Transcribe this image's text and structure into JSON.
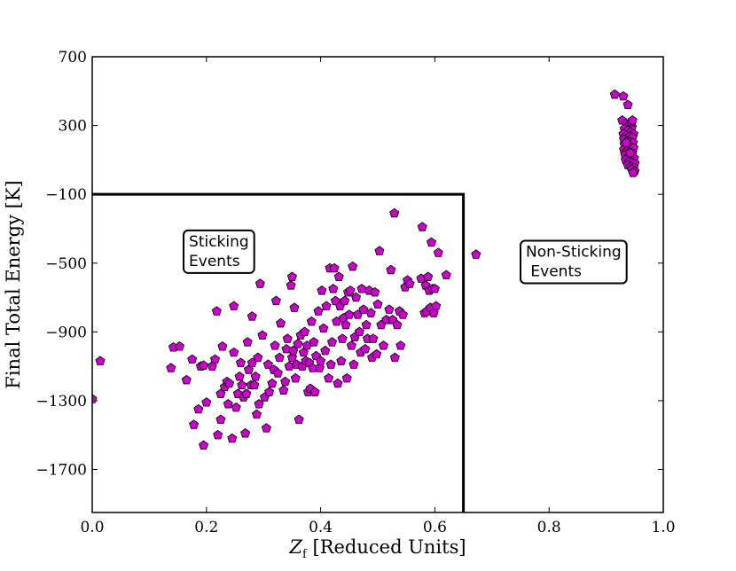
{
  "chart_data": {
    "type": "scatter",
    "title": "",
    "xlabel_main": "Z",
    "xlabel_sub": "f",
    "xlabel_rest": " [Reduced Units]",
    "ylabel": "Final Total Energy [K]",
    "xlim": [
      0.0,
      1.0
    ],
    "ylim": [
      -1950,
      700
    ],
    "xticks": [
      0.0,
      0.2,
      0.4,
      0.6,
      0.8,
      1.0
    ],
    "xtick_labels": [
      "0.0",
      "0.2",
      "0.4",
      "0.6",
      "0.8",
      "1.0"
    ],
    "yticks": [
      700,
      300,
      -100,
      -500,
      -900,
      -1300,
      -1700
    ],
    "ytick_labels": [
      "700",
      "300",
      "−100",
      "−500",
      "−900",
      "−1300",
      "−1700"
    ],
    "marker": "pentagon",
    "marker_color": "#cc00cc",
    "marker_edge": "#000000",
    "line_color": "#000000",
    "threshold": {
      "x": 0.65,
      "y": -100
    },
    "annotations": [
      {
        "lines": [
          "Sticking",
          "Events"
        ],
        "x": 0.16,
        "y": -310
      },
      {
        "lines": [
          "Non-Sticking",
          " Events"
        ],
        "x": 0.75,
        "y": -370
      }
    ],
    "points": [
      [
        0.0,
        -1290
      ],
      [
        0.014,
        -1070
      ],
      [
        0.138,
        -1110
      ],
      [
        0.142,
        -990
      ],
      [
        0.153,
        -985
      ],
      [
        0.165,
        -1180
      ],
      [
        0.175,
        -1060
      ],
      [
        0.178,
        -1440
      ],
      [
        0.186,
        -1350
      ],
      [
        0.19,
        -1100
      ],
      [
        0.195,
        -1095
      ],
      [
        0.195,
        -1560
      ],
      [
        0.2,
        -1310
      ],
      [
        0.21,
        -1100
      ],
      [
        0.215,
        -1060
      ],
      [
        0.218,
        -780
      ],
      [
        0.22,
        -1500
      ],
      [
        0.225,
        -1410
      ],
      [
        0.225,
        -1260
      ],
      [
        0.228,
        -985
      ],
      [
        0.232,
        -1220
      ],
      [
        0.236,
        -1190
      ],
      [
        0.238,
        -1320
      ],
      [
        0.24,
        -1200
      ],
      [
        0.245,
        -1520
      ],
      [
        0.248,
        -1020
      ],
      [
        0.248,
        -750
      ],
      [
        0.252,
        -1340
      ],
      [
        0.255,
        -1260
      ],
      [
        0.258,
        -1160
      ],
      [
        0.26,
        -1080
      ],
      [
        0.262,
        -1210
      ],
      [
        0.265,
        -1280
      ],
      [
        0.268,
        -1490
      ],
      [
        0.27,
        -1260
      ],
      [
        0.272,
        -960
      ],
      [
        0.274,
        -1120
      ],
      [
        0.278,
        -1210
      ],
      [
        0.28,
        -1080
      ],
      [
        0.28,
        -810
      ],
      [
        0.284,
        -1210
      ],
      [
        0.286,
        -1160
      ],
      [
        0.288,
        -1380
      ],
      [
        0.29,
        -1050
      ],
      [
        0.292,
        -1320
      ],
      [
        0.294,
        -620
      ],
      [
        0.298,
        -920
      ],
      [
        0.302,
        -1280
      ],
      [
        0.305,
        -1460
      ],
      [
        0.308,
        -1090
      ],
      [
        0.31,
        -1250
      ],
      [
        0.315,
        -1200
      ],
      [
        0.318,
        -1120
      ],
      [
        0.32,
        -980
      ],
      [
        0.322,
        -720
      ],
      [
        0.325,
        -1140
      ],
      [
        0.328,
        -1050
      ],
      [
        0.33,
        -850
      ],
      [
        0.335,
        -1240
      ],
      [
        0.338,
        -1190
      ],
      [
        0.34,
        -1000
      ],
      [
        0.342,
        -940
      ],
      [
        0.345,
        -1100
      ],
      [
        0.348,
        -630
      ],
      [
        0.35,
        -1050
      ],
      [
        0.35,
        -580
      ],
      [
        0.352,
        -1010
      ],
      [
        0.354,
        -760
      ],
      [
        0.356,
        -1170
      ],
      [
        0.358,
        -1090
      ],
      [
        0.36,
        -970
      ],
      [
        0.362,
        -1410
      ],
      [
        0.365,
        -920
      ],
      [
        0.368,
        -1100
      ],
      [
        0.37,
        -1020
      ],
      [
        0.372,
        -900
      ],
      [
        0.374,
        -1070
      ],
      [
        0.376,
        -980
      ],
      [
        0.378,
        -1250
      ],
      [
        0.38,
        -1080
      ],
      [
        0.382,
        -1230
      ],
      [
        0.384,
        -840
      ],
      [
        0.386,
        -1110
      ],
      [
        0.388,
        -960
      ],
      [
        0.39,
        -1250
      ],
      [
        0.392,
        -1040
      ],
      [
        0.396,
        -780
      ],
      [
        0.398,
        -1110
      ],
      [
        0.4,
        -1070
      ],
      [
        0.402,
        -660
      ],
      [
        0.405,
        -880
      ],
      [
        0.408,
        -1010
      ],
      [
        0.41,
        -750
      ],
      [
        0.414,
        -1170
      ],
      [
        0.416,
        -530
      ],
      [
        0.418,
        -1090
      ],
      [
        0.42,
        -960
      ],
      [
        0.422,
        -650
      ],
      [
        0.424,
        -530
      ],
      [
        0.426,
        -720
      ],
      [
        0.428,
        -840
      ],
      [
        0.43,
        -1200
      ],
      [
        0.432,
        -580
      ],
      [
        0.434,
        -750
      ],
      [
        0.436,
        -1070
      ],
      [
        0.438,
        -940
      ],
      [
        0.44,
        -820
      ],
      [
        0.442,
        -720
      ],
      [
        0.444,
        -860
      ],
      [
        0.446,
        -1170
      ],
      [
        0.448,
        -670
      ],
      [
        0.45,
        -800
      ],
      [
        0.452,
        -660
      ],
      [
        0.454,
        -980
      ],
      [
        0.456,
        -520
      ],
      [
        0.458,
        -1090
      ],
      [
        0.46,
        -930
      ],
      [
        0.462,
        -700
      ],
      [
        0.465,
        -800
      ],
      [
        0.468,
        -900
      ],
      [
        0.47,
        -1020
      ],
      [
        0.472,
        -650
      ],
      [
        0.475,
        -770
      ],
      [
        0.478,
        -1000
      ],
      [
        0.48,
        -860
      ],
      [
        0.482,
        -940
      ],
      [
        0.485,
        -660
      ],
      [
        0.488,
        -790
      ],
      [
        0.49,
        -1050
      ],
      [
        0.492,
        -940
      ],
      [
        0.495,
        -670
      ],
      [
        0.498,
        -1030
      ],
      [
        0.5,
        -740
      ],
      [
        0.503,
        -430
      ],
      [
        0.506,
        -860
      ],
      [
        0.51,
        -980
      ],
      [
        0.515,
        -830
      ],
      [
        0.52,
        -770
      ],
      [
        0.523,
        -540
      ],
      [
        0.526,
        -830
      ],
      [
        0.529,
        -210
      ],
      [
        0.53,
        -1050
      ],
      [
        0.534,
        -860
      ],
      [
        0.538,
        -780
      ],
      [
        0.54,
        -980
      ],
      [
        0.544,
        -800
      ],
      [
        0.548,
        -640
      ],
      [
        0.552,
        -600
      ],
      [
        0.556,
        -620
      ],
      [
        0.576,
        -590
      ],
      [
        0.578,
        -290
      ],
      [
        0.582,
        -790
      ],
      [
        0.584,
        -630
      ],
      [
        0.586,
        -780
      ],
      [
        0.588,
        -580
      ],
      [
        0.59,
        -660
      ],
      [
        0.592,
        -760
      ],
      [
        0.594,
        -380
      ],
      [
        0.596,
        -650
      ],
      [
        0.598,
        -790
      ],
      [
        0.6,
        -650
      ],
      [
        0.602,
        -750
      ],
      [
        0.606,
        -440
      ],
      [
        0.62,
        -570
      ],
      [
        0.672,
        -450
      ],
      [
        0.915,
        480
      ],
      [
        0.93,
        470
      ],
      [
        0.938,
        420
      ],
      [
        0.928,
        330
      ],
      [
        0.935,
        310
      ],
      [
        0.94,
        300
      ],
      [
        0.945,
        290
      ],
      [
        0.932,
        280
      ],
      [
        0.938,
        270
      ],
      [
        0.943,
        260
      ],
      [
        0.948,
        250
      ],
      [
        0.93,
        250
      ],
      [
        0.936,
        240
      ],
      [
        0.941,
        235
      ],
      [
        0.946,
        230
      ],
      [
        0.931,
        220
      ],
      [
        0.937,
        210
      ],
      [
        0.942,
        205
      ],
      [
        0.947,
        200
      ],
      [
        0.932,
        190
      ],
      [
        0.938,
        180
      ],
      [
        0.943,
        175
      ],
      [
        0.948,
        170
      ],
      [
        0.931,
        160
      ],
      [
        0.936,
        150
      ],
      [
        0.941,
        145
      ],
      [
        0.946,
        140
      ],
      [
        0.933,
        130
      ],
      [
        0.939,
        120
      ],
      [
        0.944,
        115
      ],
      [
        0.949,
        110
      ],
      [
        0.934,
        100
      ],
      [
        0.94,
        90
      ],
      [
        0.945,
        85
      ],
      [
        0.95,
        80
      ],
      [
        0.938,
        70
      ],
      [
        0.943,
        60
      ],
      [
        0.948,
        55
      ],
      [
        0.945,
        45
      ],
      [
        0.95,
        35
      ],
      [
        0.947,
        25
      ],
      [
        0.942,
        140
      ],
      [
        0.935,
        200
      ],
      [
        0.944,
        320
      ],
      [
        0.946,
        330
      ]
    ]
  }
}
